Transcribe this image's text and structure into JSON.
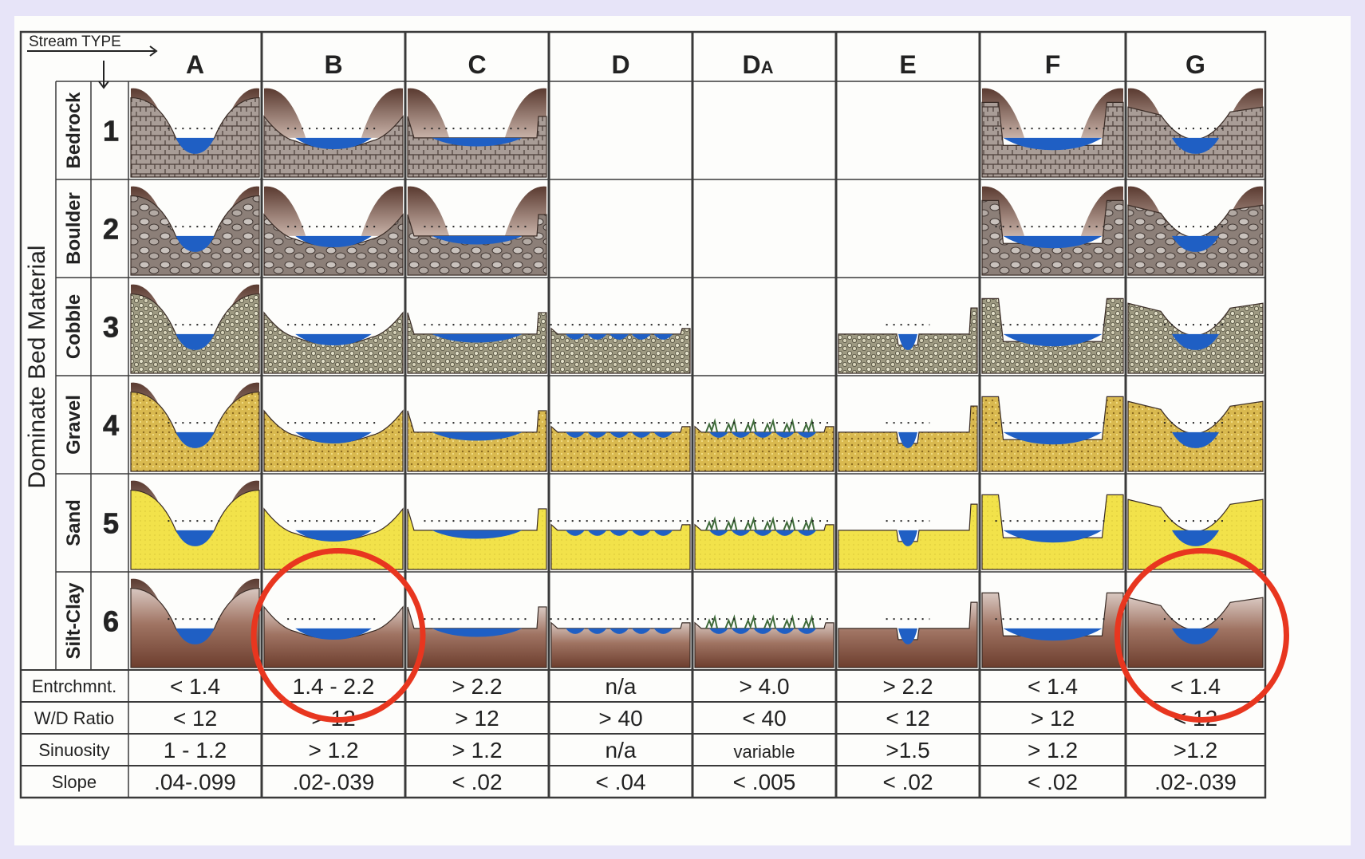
{
  "header": {
    "stream_type_label": "Stream TYPE",
    "bed_material_label": "Dominate Bed Material"
  },
  "stream_types": [
    "A",
    "B",
    "C",
    "D",
    "DA",
    "E",
    "F",
    "G"
  ],
  "bed_materials": [
    {
      "number": "1",
      "name": "Bedrock"
    },
    {
      "number": "2",
      "name": "Boulder"
    },
    {
      "number": "3",
      "name": "Cobble"
    },
    {
      "number": "4",
      "name": "Gravel"
    },
    {
      "number": "5",
      "name": "Sand"
    },
    {
      "number": "6",
      "name": "Silt-Clay"
    }
  ],
  "empty_cells": [
    "D1",
    "D2",
    "DA1",
    "DA2",
    "DA3",
    "E1",
    "E2"
  ],
  "criteria": [
    {
      "label": "Entrchmnt.",
      "values": [
        "< 1.4",
        "1.4 - 2.2",
        "> 2.2",
        "n/a",
        "> 4.0",
        "> 2.2",
        "< 1.4",
        "< 1.4"
      ]
    },
    {
      "label": "W/D Ratio",
      "values": [
        "< 12",
        "> 12",
        "> 12",
        "> 40",
        "< 40",
        "< 12",
        "> 12",
        "< 12"
      ]
    },
    {
      "label": "Sinuosity",
      "values": [
        "1 - 1.2",
        "> 1.2",
        "> 1.2",
        "n/a",
        "variable",
        ">1.5",
        "> 1.2",
        ">1.2"
      ]
    },
    {
      "label": "Slope",
      "values": [
        ".04-.099",
        ".02-.039",
        "< .02",
        "< .04",
        "< .005",
        "< .02",
        "< .02",
        ".02-.039"
      ]
    }
  ],
  "highlights": [
    "B6",
    "G6"
  ],
  "colors": {
    "water": "#1f5fc4",
    "bedrock": "#8f7f78",
    "boulder": "#7a6c66",
    "cobble": "#b8b49a",
    "gravel": "#dfc15a",
    "sand": "#f2e24a",
    "silt_clay": "#8a5a47",
    "highlight": "#e8361f",
    "vegetation": "#3f6b3a"
  }
}
